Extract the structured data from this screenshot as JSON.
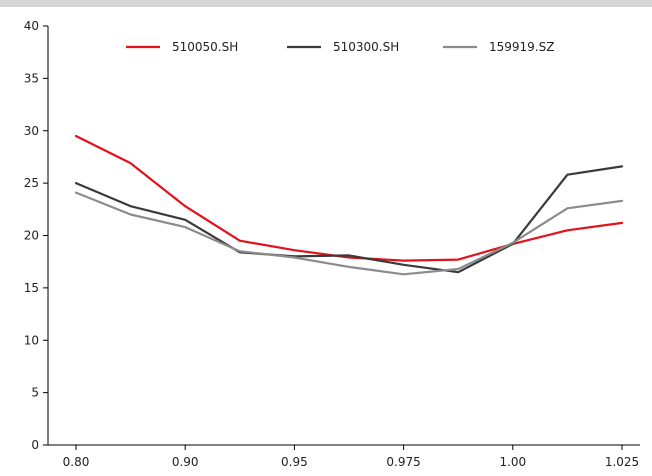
{
  "chart_data": {
    "type": "line",
    "title": "",
    "xlabel": "",
    "ylabel": "",
    "categories": [
      "0.80",
      "0.85",
      "0.90",
      "0.925",
      "0.95",
      "0.963",
      "0.975",
      "0.988",
      "1.00",
      "1.013",
      "1.025"
    ],
    "x_tick_labels": [
      "0.80",
      "0.90",
      "0.95",
      "0.975",
      "1.00",
      "1.025"
    ],
    "ylim": [
      0,
      40
    ],
    "y_ticks": [
      0,
      5,
      10,
      15,
      20,
      25,
      30,
      35,
      40
    ],
    "grid": false,
    "legend_position": "top-center",
    "series": [
      {
        "name": "510050.SH",
        "color": "#e3111b",
        "values": [
          29.5,
          26.9,
          22.8,
          19.5,
          18.6,
          17.9,
          17.6,
          17.7,
          19.2,
          20.5,
          21.2
        ]
      },
      {
        "name": "510300.SH",
        "color": "#3a3a3a",
        "values": [
          25.0,
          22.8,
          21.5,
          18.4,
          18.0,
          18.1,
          17.2,
          16.5,
          19.2,
          25.8,
          26.6
        ]
      },
      {
        "name": "159919.SZ",
        "color": "#8c8c8c",
        "values": [
          24.1,
          22.0,
          20.8,
          18.5,
          17.9,
          17.0,
          16.3,
          16.8,
          19.3,
          22.6,
          23.3
        ]
      }
    ]
  }
}
